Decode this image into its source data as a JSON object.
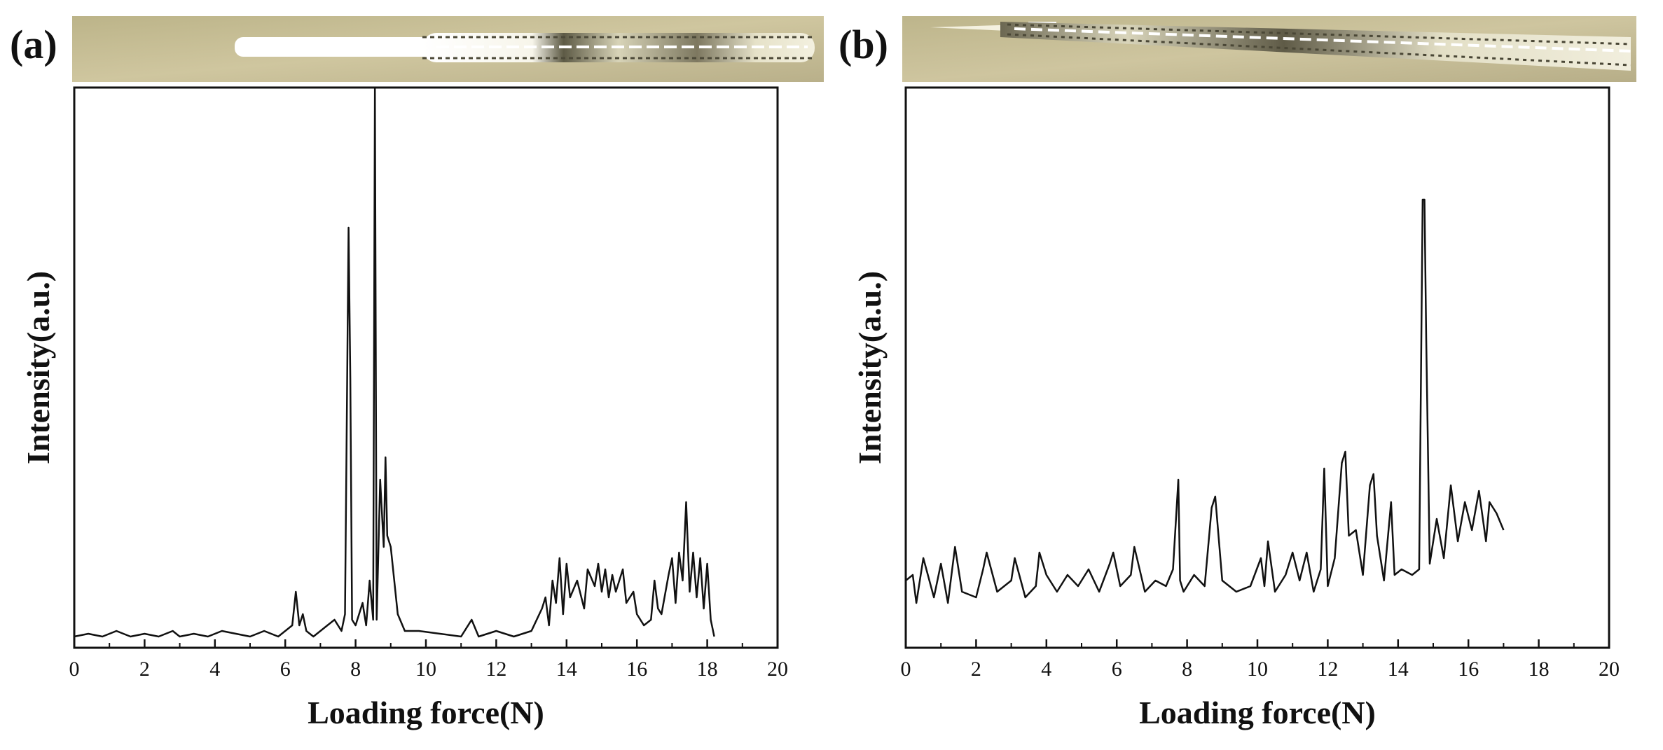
{
  "figure": {
    "panels": [
      {
        "label": "(a)",
        "micrograph": "scratch-track-micrograph"
      },
      {
        "label": "(b)",
        "micrograph": "scratch-track-micrograph"
      }
    ]
  },
  "chart_data": [
    {
      "type": "line",
      "panel": "(a)",
      "title": "",
      "xlabel": "Loading force(N)",
      "ylabel": "Intensity(a.u.)",
      "xlim": [
        0,
        20
      ],
      "ylim": [
        0,
        100
      ],
      "xticks": [
        "0",
        "2",
        "4",
        "6",
        "8",
        "10",
        "12",
        "14",
        "16",
        "18",
        "20"
      ],
      "yticks": [],
      "grid": false,
      "legend": "none",
      "line_color": "#111111",
      "series": [
        {
          "x": [
            0,
            0.4,
            0.8,
            1.2,
            1.6,
            2.0,
            2.4,
            2.8,
            3.0,
            3.4,
            3.8,
            4.2,
            4.6,
            5.0,
            5.4,
            5.8,
            6.0,
            6.2,
            6.3,
            6.4,
            6.5,
            6.6,
            6.8,
            7.2,
            7.4,
            7.6,
            7.7,
            7.8,
            7.85,
            7.9,
            8.0,
            8.2,
            8.3,
            8.4,
            8.5,
            8.55,
            8.6,
            8.7,
            8.8,
            8.85,
            8.9,
            9.0,
            9.1,
            9.2,
            9.4,
            9.8,
            10.4,
            11.0,
            11.3,
            11.5,
            12.0,
            12.5,
            13.0,
            13.3,
            13.4,
            13.5,
            13.6,
            13.7,
            13.8,
            13.9,
            14.0,
            14.1,
            14.3,
            14.5,
            14.6,
            14.8,
            14.9,
            15.0,
            15.1,
            15.2,
            15.3,
            15.4,
            15.6,
            15.7,
            15.9,
            16.0,
            16.2,
            16.4,
            16.5,
            16.6,
            16.7,
            16.9,
            17.0,
            17.1,
            17.2,
            17.3,
            17.4,
            17.5,
            17.6,
            17.7,
            17.8,
            17.9,
            18.0,
            18.1,
            18.2
          ],
          "y": [
            2,
            2.5,
            2,
            3,
            2,
            2.5,
            2,
            3,
            2,
            2.5,
            2,
            3,
            2.5,
            2,
            3,
            2,
            3,
            4,
            10,
            4,
            6,
            3,
            2,
            4,
            5,
            3,
            6,
            75,
            48,
            5,
            4,
            8,
            4,
            12,
            5,
            100,
            5,
            30,
            18,
            34,
            20,
            18,
            12,
            6,
            3,
            3,
            2.5,
            2,
            5,
            2,
            3,
            2,
            3,
            7,
            9,
            4,
            12,
            8,
            16,
            6,
            15,
            9,
            12,
            7,
            14,
            11,
            15,
            10,
            14,
            9,
            13,
            10,
            14,
            8,
            10,
            6,
            4,
            5,
            12,
            7,
            6,
            13,
            16,
            8,
            17,
            12,
            26,
            10,
            17,
            9,
            16,
            7,
            15,
            5,
            2
          ]
        }
      ]
    },
    {
      "type": "line",
      "panel": "(b)",
      "title": "",
      "xlabel": "Loading force(N)",
      "ylabel": "Intensity(a.u.)",
      "xlim": [
        0,
        20
      ],
      "ylim": [
        0,
        100
      ],
      "xticks": [
        "0",
        "2",
        "4",
        "6",
        "8",
        "10",
        "12",
        "14",
        "16",
        "18",
        "20"
      ],
      "yticks": [],
      "grid": false,
      "legend": "none",
      "line_color": "#111111",
      "series": [
        {
          "x": [
            0,
            0.2,
            0.3,
            0.5,
            0.8,
            1.0,
            1.2,
            1.4,
            1.6,
            2.0,
            2.2,
            2.3,
            2.6,
            3.0,
            3.1,
            3.4,
            3.7,
            3.8,
            4.0,
            4.3,
            4.6,
            4.9,
            5.2,
            5.5,
            5.8,
            5.9,
            6.1,
            6.4,
            6.5,
            6.8,
            7.1,
            7.4,
            7.6,
            7.75,
            7.8,
            7.9,
            8.2,
            8.5,
            8.7,
            8.8,
            9.0,
            9.4,
            9.8,
            10.1,
            10.2,
            10.3,
            10.5,
            10.8,
            11.0,
            11.2,
            11.4,
            11.6,
            11.8,
            11.9,
            12.0,
            12.2,
            12.4,
            12.5,
            12.6,
            12.8,
            13.0,
            13.2,
            13.3,
            13.4,
            13.6,
            13.8,
            13.9,
            14.1,
            14.4,
            14.6,
            14.7,
            14.75,
            14.8,
            14.9,
            15.1,
            15.3,
            15.5,
            15.7,
            15.9,
            16.1,
            16.3,
            16.5,
            16.6,
            16.8,
            17.0
          ],
          "y": [
            12,
            13,
            8,
            16,
            9,
            15,
            8,
            18,
            10,
            9,
            14,
            17,
            10,
            12,
            16,
            9,
            11,
            17,
            13,
            10,
            13,
            11,
            14,
            10,
            15,
            17,
            11,
            13,
            18,
            10,
            12,
            11,
            14,
            30,
            12,
            10,
            13,
            11,
            25,
            27,
            12,
            10,
            11,
            16,
            11,
            19,
            10,
            13,
            17,
            12,
            17,
            10,
            14,
            32,
            11,
            16,
            33,
            35,
            20,
            21,
            13,
            29,
            31,
            20,
            12,
            26,
            13,
            14,
            13,
            14,
            80,
            80,
            55,
            15,
            23,
            16,
            29,
            19,
            26,
            21,
            28,
            19,
            26,
            24,
            21
          ]
        }
      ]
    }
  ]
}
